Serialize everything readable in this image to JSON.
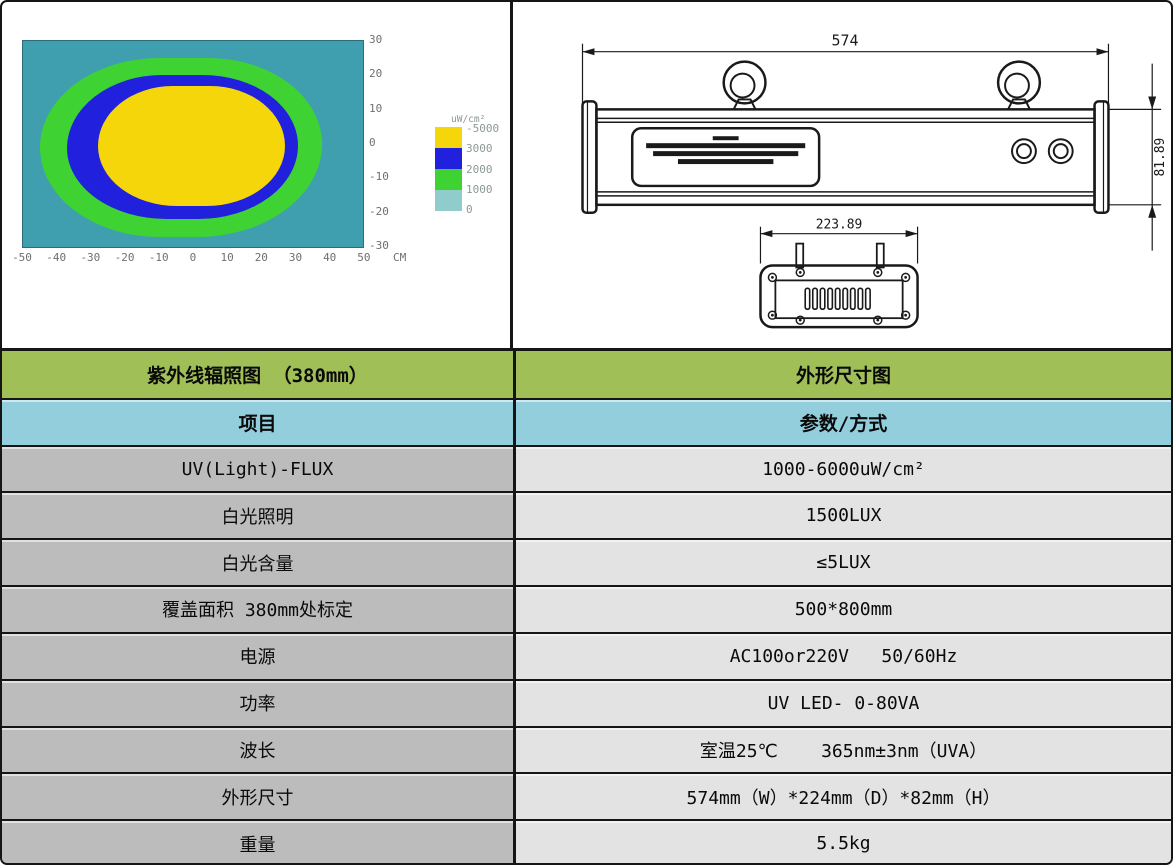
{
  "page": {
    "background": "#ffffff",
    "border_color": "#151515"
  },
  "chart_data": {
    "type": "heatmap",
    "x_ticks": [
      "-50",
      "-40",
      "-30",
      "-20",
      "-10",
      "0",
      "10",
      "20",
      "30",
      "40",
      "50"
    ],
    "x_unit_label": "CM",
    "y_ticks": [
      "30",
      "20",
      "10",
      "0",
      "-10",
      "-20",
      "-30"
    ],
    "x_range_cm": [
      -50,
      50
    ],
    "y_range_cm": [
      -30,
      30
    ],
    "grid": true,
    "legend": {
      "title": "uW/cm²",
      "boundary_labels": [
        "-5000",
        "3000",
        "2000",
        "1000",
        "0"
      ],
      "position": "right"
    },
    "legend_swatch_colors": [
      "#f5d60a",
      "#2020dd",
      "#3ed332",
      "#8fcccb"
    ],
    "zones": [
      {
        "range_uw_cm2": "3000-5000",
        "color": "#f5d60a",
        "x_extent_cm": [
          -28,
          27
        ],
        "y_extent_cm": [
          -18,
          17
        ]
      },
      {
        "range_uw_cm2": "2000-3000",
        "color": "#2020dd",
        "x_extent_cm": [
          -37,
          31
        ],
        "y_extent_cm": [
          -22,
          20
        ]
      },
      {
        "range_uw_cm2": "1000-2000",
        "color": "#3ed332",
        "x_extent_cm": [
          -45,
          38
        ],
        "y_extent_cm": [
          -27,
          25
        ]
      },
      {
        "range_uw_cm2": "0-1000",
        "color": "#3f9fae",
        "x_extent_cm": [
          -50,
          50
        ],
        "y_extent_cm": [
          -30,
          30
        ]
      }
    ]
  },
  "drawing": {
    "width_dim_label": "574",
    "height_dim_label": "81.89",
    "depth_dim_label": "223.89"
  },
  "table": {
    "colors": {
      "header_green": "#a0bf56",
      "header_blue": "#93cedd",
      "label_col": "#bcbcbc",
      "value_col": "#e3e3e3"
    },
    "rows": [
      {
        "style": "green",
        "left": "紫外线辐照图 （380mm）",
        "right": "外形尺寸图"
      },
      {
        "style": "blue",
        "left": "项目",
        "right": "参数/方式"
      },
      {
        "style": "",
        "left": "UV(Light)-FLUX",
        "right": "1000-6000uW/cm²"
      },
      {
        "style": "",
        "left": "白光照明",
        "right": "1500LUX"
      },
      {
        "style": "",
        "left": "白光含量",
        "right": "≤5LUX"
      },
      {
        "style": "",
        "left": "覆盖面积 380mm处标定",
        "right": "500*800mm"
      },
      {
        "style": "",
        "left": "电源",
        "right": "AC100or220V   50/60Hz"
      },
      {
        "style": "",
        "left": "功率",
        "right": "UV LED- 0-80VA"
      },
      {
        "style": "",
        "left": "波长",
        "right": "室温25℃    365nm±3nm（UVA）"
      },
      {
        "style": "",
        "left": "外形尺寸",
        "right": "574mm（W）*224mm（D）*82mm（H）"
      },
      {
        "style": "",
        "left": "重量",
        "right": "5.5kg"
      }
    ]
  }
}
